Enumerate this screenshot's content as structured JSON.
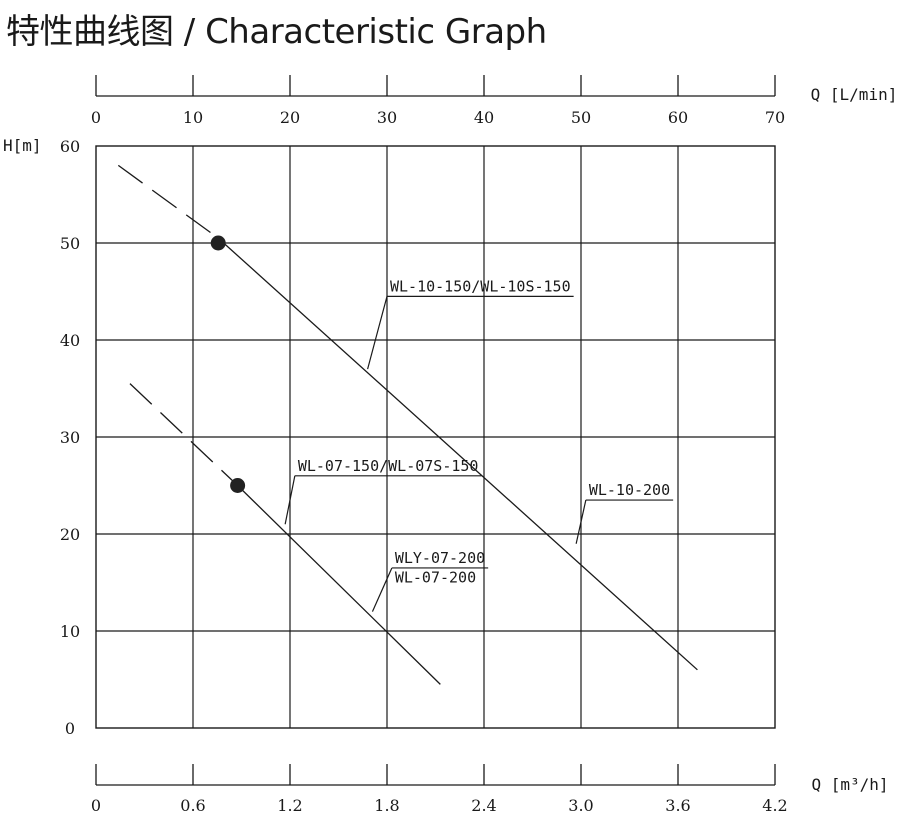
{
  "page": {
    "title": "特性曲线图 / Characteristic Graph"
  },
  "chart_data": {
    "type": "line",
    "title": "特性曲线图 / Characteristic Graph",
    "x_top": {
      "unit_label": "Q [L/min]",
      "ticks": [
        0,
        10,
        20,
        30,
        40,
        50,
        60,
        70
      ],
      "range": [
        0,
        70
      ]
    },
    "x_bottom": {
      "unit_label": "Q [m³/h]",
      "ticks": [
        "0",
        "0.6",
        "1.2",
        "1.8",
        "2.4",
        "3.0",
        "3.6",
        "4.2"
      ],
      "range": [
        0,
        4.2
      ]
    },
    "y": {
      "unit_label": "H[m]",
      "ticks": [
        0,
        10,
        20,
        30,
        40,
        50,
        60
      ],
      "range": [
        0,
        60
      ]
    },
    "grid": true,
    "series": [
      {
        "name": "WL-10-150/WL-10S-150 / WL-10-200",
        "dashed_segment": [
          [
            2.3,
            58
          ],
          [
            12.6,
            50.5
          ]
        ],
        "solid_segment": [
          [
            12.6,
            50.5
          ],
          [
            62,
            6
          ]
        ],
        "marker": [
          12.6,
          50
        ]
      },
      {
        "name": "WL-07-150/WL-07S-150 / WLY-07-200 / WL-07-200",
        "dashed_segment": [
          [
            3.5,
            35.5
          ],
          [
            14.6,
            25
          ]
        ],
        "solid_segment": [
          [
            14.6,
            25
          ],
          [
            35.5,
            4.5
          ]
        ],
        "marker": [
          14.6,
          25
        ]
      }
    ],
    "annotations": [
      {
        "text": "WL-10-150/WL-10S-150",
        "point_on_curve": [
          28,
          37
        ],
        "label_anchor": [
          30,
          44.5
        ]
      },
      {
        "text": "WL-10-200",
        "point_on_curve": [
          49.5,
          19
        ],
        "label_anchor": [
          50.5,
          23.5
        ]
      },
      {
        "text": "WL-07-150/WL-07S-150",
        "point_on_curve": [
          19.5,
          21
        ],
        "label_anchor": [
          20.5,
          26
        ]
      },
      {
        "text": "WLY-07-200",
        "point_on_curve": [
          28.5,
          12
        ],
        "label_anchor": [
          30.5,
          16.5
        ]
      },
      {
        "text": "WL-07-200",
        "point_on_curve": null,
        "label_anchor": [
          30.5,
          14.5
        ]
      }
    ],
    "colors": {
      "line": "#1a1a1a",
      "grid": "#1a1a1a"
    }
  }
}
